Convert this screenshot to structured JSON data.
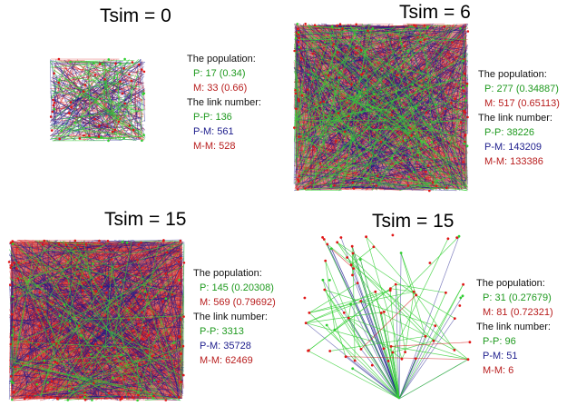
{
  "panels": [
    {
      "title": "Tsim = 0",
      "population_label": "The population:",
      "p_line": "P: 17 (0.34)",
      "m_line": "M: 33 (0.66)",
      "links_label": "The link number:",
      "pp_line": "P-P: 136",
      "pm_line": "P-M: 561",
      "mm_line": "M-M: 528"
    },
    {
      "title": "Tsim = 6",
      "population_label": "The population:",
      "p_line": "P: 277 (0.34887)",
      "m_line": "M: 517 (0.65113)",
      "links_label": "The link number:",
      "pp_line": "P-P: 38226",
      "pm_line": "P-M: 143209",
      "mm_line": "M-M: 133386"
    },
    {
      "title": "Tsim = 15",
      "population_label": "The population:",
      "p_line": "P: 145 (0.20308)",
      "m_line": "M: 569 (0.79692)",
      "links_label": "The link number:",
      "pp_line": "P-P: 3313",
      "pm_line": "P-M: 35728",
      "mm_line": "M-M: 62469"
    },
    {
      "title": "Tsim = 15",
      "population_label": "The population:",
      "p_line": "P: 31 (0.27679)",
      "m_line": "M: 81 (0.72321)",
      "links_label": "The link number:",
      "pp_line": "P-P: 96",
      "pm_line": "P-M: 51",
      "mm_line": "M-M: 6"
    }
  ],
  "colors": {
    "p_node": "#2fcf2f",
    "m_node": "#e01515",
    "pp_link": "#35d035",
    "pm_link": "#1c1c8c",
    "mm_link": "#d41a1a"
  }
}
